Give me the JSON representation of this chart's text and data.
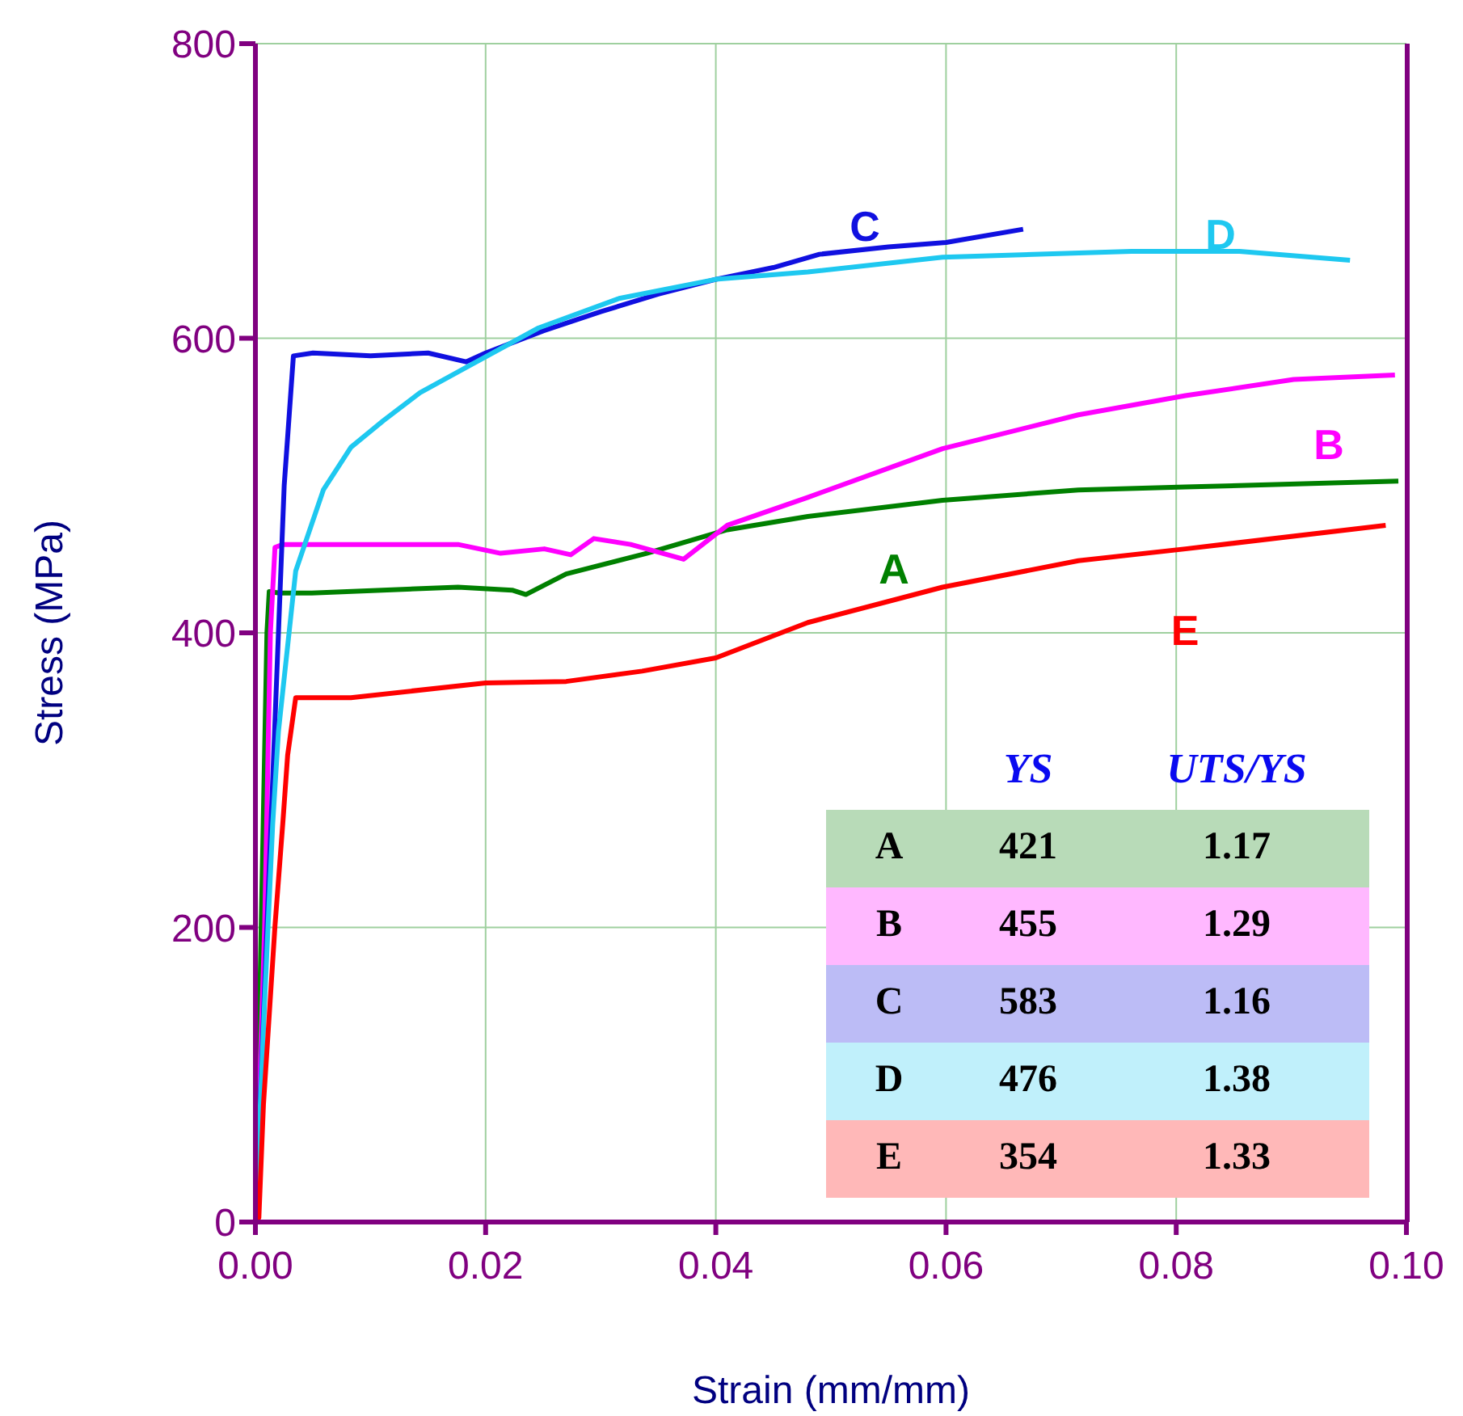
{
  "chart_data": {
    "type": "line",
    "xlabel": "Strain (mm/mm)",
    "ylabel": "Stress (MPa)",
    "xlim": [
      0,
      0.1
    ],
    "ylim": [
      0,
      800
    ],
    "xticks": [
      {
        "value": 0,
        "label": "0.00"
      },
      {
        "value": 0.02,
        "label": "0.02"
      },
      {
        "value": 0.04,
        "label": "0.04"
      },
      {
        "value": 0.06,
        "label": "0.06"
      },
      {
        "value": 0.08,
        "label": "0.08"
      },
      {
        "value": 0.1,
        "label": "0.10"
      }
    ],
    "yticks": [
      0,
      200,
      400,
      600,
      800
    ],
    "grid": true,
    "legend": false,
    "marker": "none",
    "line_style": "solid",
    "series": [
      {
        "name": "A",
        "color": "#008000",
        "x": [
          0,
          0.0005,
          0.001,
          0.0012,
          0.0021,
          0.0049,
          0.0176,
          0.0223,
          0.0235,
          0.027,
          0.034,
          0.041,
          0.048,
          0.0597,
          0.0715,
          0.0808,
          0.0993
        ],
        "values": [
          0,
          200,
          400,
          428,
          427,
          427,
          431,
          429,
          426,
          440,
          454,
          470,
          479,
          490,
          497,
          499,
          503
        ]
      },
      {
        "name": "B",
        "color": "#ff00ff",
        "x": [
          0,
          0.0008,
          0.0013,
          0.0017,
          0.0024,
          0.0176,
          0.0213,
          0.0251,
          0.0274,
          0.0294,
          0.0326,
          0.0372,
          0.041,
          0.048,
          0.0597,
          0.0715,
          0.0808,
          0.0902,
          0.099
        ],
        "values": [
          0,
          200,
          400,
          458,
          460,
          460,
          454,
          457,
          453,
          464,
          460,
          450,
          473,
          492,
          525,
          548,
          561,
          572,
          575
        ]
      },
      {
        "name": "C",
        "color": "#1010e0",
        "x": [
          0,
          0.0015,
          0.0025,
          0.0033,
          0.005,
          0.01,
          0.015,
          0.0183,
          0.02,
          0.025,
          0.03,
          0.035,
          0.04,
          0.045,
          0.049,
          0.055,
          0.06,
          0.0667
        ],
        "values": [
          0,
          300,
          500,
          588,
          590,
          588,
          590,
          584,
          590,
          605,
          618,
          630,
          640,
          648,
          657,
          662,
          665,
          674
        ]
      },
      {
        "name": "D",
        "color": "#1ec8f0",
        "x": [
          0,
          0.0008,
          0.0015,
          0.002,
          0.0035,
          0.0059,
          0.0083,
          0.0111,
          0.0143,
          0.0185,
          0.0246,
          0.0316,
          0.04,
          0.048,
          0.0597,
          0.0761,
          0.0855,
          0.0951
        ],
        "values": [
          0,
          150,
          270,
          333,
          442,
          497,
          526,
          544,
          563,
          581,
          607,
          627,
          640,
          645,
          655,
          659,
          659,
          653
        ]
      },
      {
        "name": "E",
        "color": "#ff0000",
        "x": [
          0,
          0.0003,
          0.0007,
          0.0017,
          0.0024,
          0.0028,
          0.0035,
          0.0083,
          0.02,
          0.027,
          0.0336,
          0.04,
          0.048,
          0.0597,
          0.0715,
          0.0808,
          0.0982
        ],
        "values": [
          0,
          3,
          80,
          201,
          273,
          317,
          356,
          356,
          366,
          367,
          374,
          383,
          407,
          431,
          449,
          457,
          473
        ]
      }
    ],
    "annotations": [
      "YS",
      "UTS/YS",
      "A",
      "421",
      "1.17",
      "B",
      "455",
      "1.29",
      "C",
      "583",
      "1.16",
      "D",
      "476",
      "1.38",
      "E",
      "354",
      "1.33"
    ]
  }
}
